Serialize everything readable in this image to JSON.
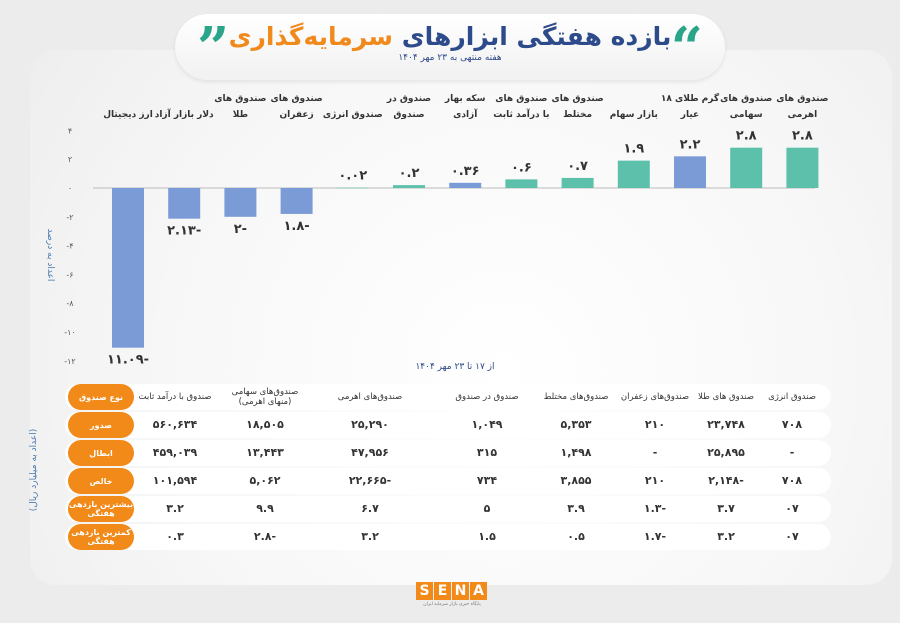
{
  "header": {
    "title_main": "بازده هفتگی ابزارهای",
    "title_highlight": "سرمایه‌گذاری",
    "quote_open": "”",
    "quote_close": "“",
    "subtitle": "هفته منتهی به ۲۳ مهر ۱۴۰۴"
  },
  "chart_data": {
    "type": "bar",
    "title": "بازده هفتگی ابزارهای سرمایه‌گذاری",
    "xlabel": "از ۱۷ تا ۲۳ مهر ۱۴۰۴",
    "ylabel": "اعداد به درصد",
    "ylim": [
      -12,
      4
    ],
    "yticks": [
      4,
      2,
      0,
      -2,
      -4,
      -6,
      -8,
      -10,
      -12
    ],
    "ytick_labels": [
      "۴",
      "۲",
      "۰",
      "-۲",
      "-۴",
      "-۶",
      "-۸",
      "-۱۰",
      "-۱۲"
    ],
    "grid": false,
    "categories": [
      [
        "ارز دیجیتال"
      ],
      [
        "دلار بازار آزاد"
      ],
      [
        "صندوق های",
        "طلا"
      ],
      [
        "صندوق های",
        "زعفران"
      ],
      [
        "صندوق انرژی"
      ],
      [
        "صندوق در",
        "صندوق"
      ],
      [
        "سکه بهار",
        "آزادی"
      ],
      [
        "صندوق های",
        "با درآمد ثابت"
      ],
      [
        "صندوق های",
        "مختلط"
      ],
      [
        "بازار سهام"
      ],
      [
        "گرم طلای ۱۸",
        "عیار"
      ],
      [
        "صندوق های",
        "سهامی"
      ],
      [
        "صندوق های",
        "اهرمی"
      ]
    ],
    "values": [
      -11.09,
      -2.13,
      -2,
      -1.8,
      0.02,
      0.2,
      0.36,
      0.6,
      0.7,
      1.9,
      2.2,
      2.8,
      2.8
    ],
    "value_labels": [
      "-۱۱.۰۹",
      "-۲.۱۳",
      "-۲",
      "-۱.۸",
      "۰.۰۲",
      "۰.۲",
      "۰.۳۶",
      "۰.۶",
      "۰.۷",
      "۱.۹",
      "۲.۲",
      "۲.۸",
      "۲.۸"
    ],
    "bar_colors": [
      "#7b9bd6",
      "#7b9bd6",
      "#7b9bd6",
      "#7b9bd6",
      "#5cc0ab",
      "#5cc0ab",
      "#7b9bd6",
      "#5cc0ab",
      "#5cc0ab",
      "#5cc0ab",
      "#7b9bd6",
      "#5cc0ab",
      "#5cc0ab"
    ]
  },
  "table": {
    "unit": "(اعداد به میلیارد ریال)",
    "row_labels": [
      "نوع صندوق",
      "صدور",
      "ابطال",
      "خالص",
      "بیشترین بازدهی هفتگی",
      "کمترین بازدهی هفتگی"
    ],
    "columns": [
      "صندوق با درآمد ثابت",
      "صندوق‌های سهامی (منهای اهرمی)",
      "صندوق‌های اهرمی",
      "صندوق در صندوق",
      "صندوق‌های مختلط",
      "صندوق‌های زعفران",
      "صندوق های طلا",
      "صندوق انرژی"
    ],
    "rows": [
      [
        "۵۶۰,۶۳۴",
        "۱۸,۵۰۵",
        "۲۵,۲۹۰",
        "۱,۰۴۹",
        "۵,۳۵۳",
        "۲۱۰",
        "۲۳,۷۴۸",
        "۷۰۸"
      ],
      [
        "۴۵۹,۰۳۹",
        "۱۳,۴۴۳",
        "۴۷,۹۵۶",
        "۳۱۵",
        "۱,۴۹۸",
        "-",
        "۲۵,۸۹۵",
        "-"
      ],
      [
        "۱۰۱,۵۹۴",
        "۵,۰۶۲",
        "-۲۲,۶۶۵",
        "۷۳۴",
        "۳,۸۵۵",
        "۲۱۰",
        "-۲,۱۴۸",
        "۷۰۸"
      ],
      [
        "۳.۲",
        "۹.۹",
        "۶.۷",
        "۵",
        "۳.۹",
        "-۱.۳",
        "۳.۷",
        "۰۷"
      ],
      [
        "۰.۳",
        "-۲.۸",
        "۳.۲",
        "۱.۵",
        "۰.۵",
        "-۱.۷",
        "۳.۲",
        "۰۷"
      ]
    ]
  },
  "logo": {
    "text": "SENA",
    "tagline": "پایگاه خبری بازار سرمایه ایران"
  },
  "colors": {
    "teal": "#5cc0ab",
    "blue": "#7b9bd6",
    "orange": "#f28a1a",
    "navy": "#2d4a8a"
  }
}
